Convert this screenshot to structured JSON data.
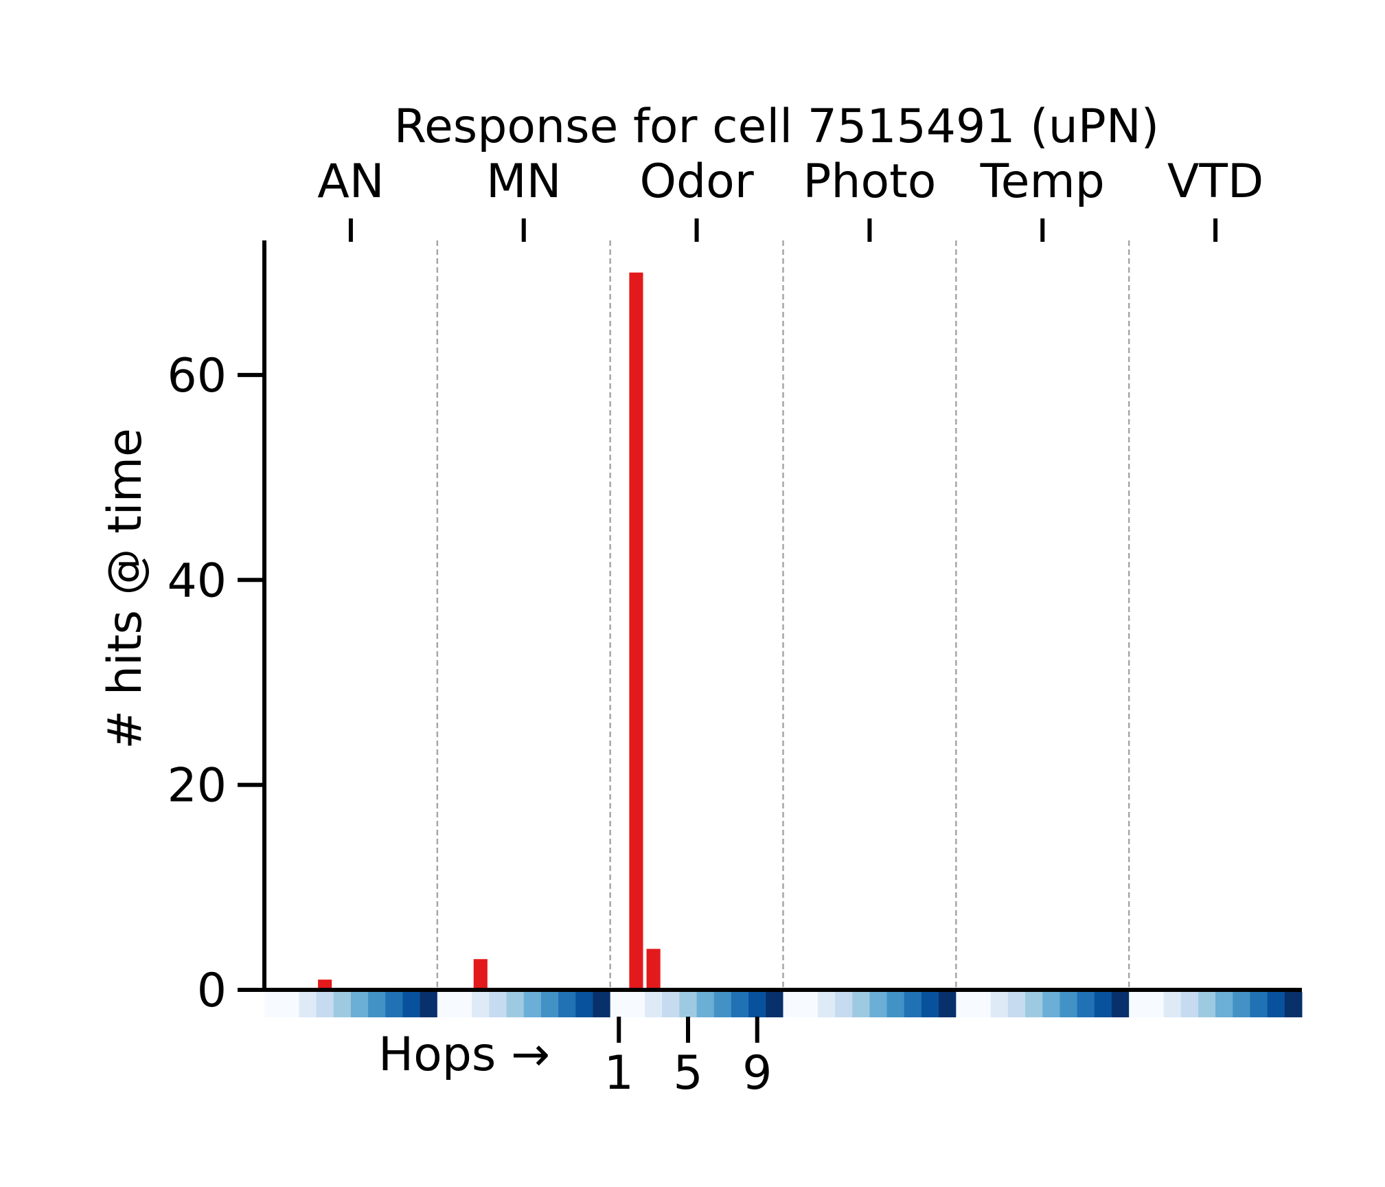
{
  "chart_data": {
    "type": "bar",
    "title": "Response for cell 7515491 (uPN)",
    "ylabel": "# hits @ time",
    "xlabel": "Hops →",
    "ylim": [
      0,
      73
    ],
    "yticks": [
      0,
      20,
      40,
      60
    ],
    "group_categories": [
      "AN",
      "MN",
      "Odor",
      "Photo",
      "Temp",
      "VTD"
    ],
    "hops_per_group": 10,
    "hop_ticks": [
      1,
      5,
      9
    ],
    "hop_tick_group": "Odor",
    "grid": false,
    "group_separators": "dashed",
    "series": [
      {
        "values": [
          [
            0,
            0,
            0,
            1,
            0,
            0,
            0,
            0,
            0,
            0
          ],
          [
            0,
            0,
            3,
            0,
            0,
            0,
            0,
            0,
            0,
            0
          ],
          [
            0,
            70,
            4,
            0,
            0,
            0,
            0,
            0,
            0,
            0
          ],
          [
            0,
            0,
            0,
            0,
            0,
            0,
            0,
            0,
            0,
            0
          ],
          [
            0,
            0,
            0,
            0,
            0,
            0,
            0,
            0,
            0,
            0
          ],
          [
            0,
            0,
            0,
            0,
            0,
            0,
            0,
            0,
            0,
            0
          ]
        ]
      }
    ],
    "colors": {
      "bar": "#e31a1c",
      "axis": "#000000",
      "separator": "#a6a6a6",
      "hop_colormap": [
        "#f7fbff",
        "#deebf7",
        "#c6dbef",
        "#9ecae1",
        "#6baed6",
        "#4292c6",
        "#2171b5",
        "#08519c",
        "#08306b"
      ]
    }
  }
}
